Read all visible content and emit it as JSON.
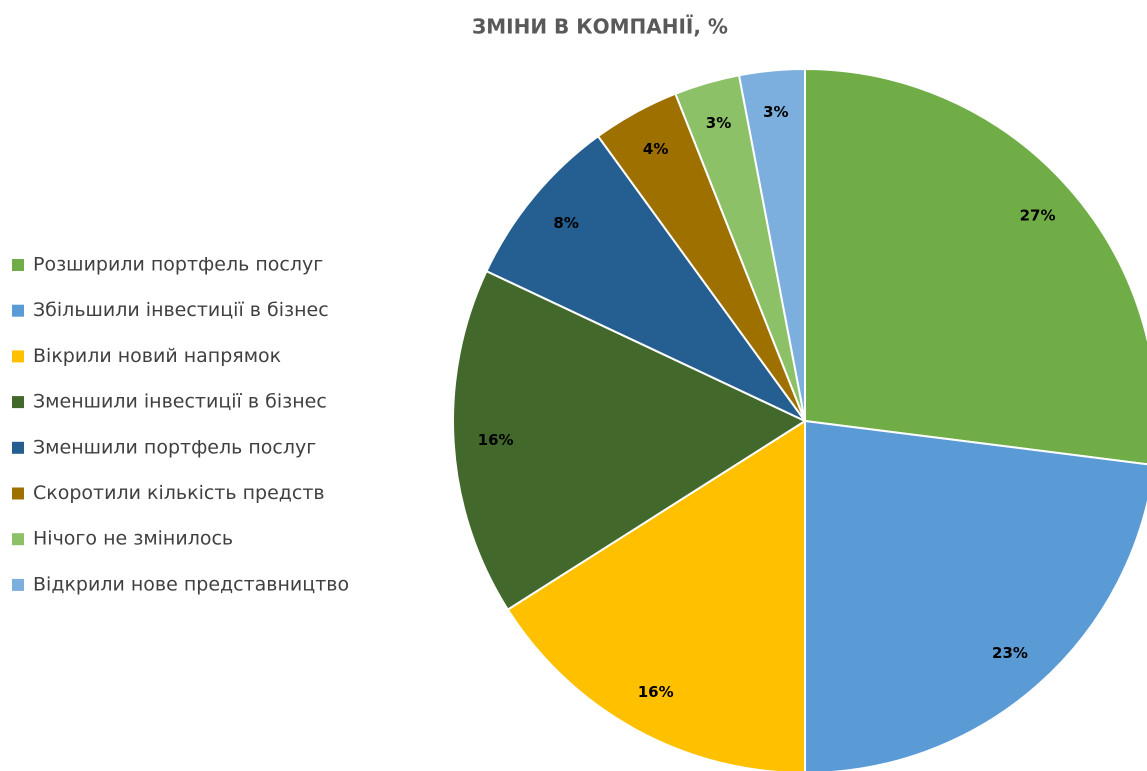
{
  "chart_data": {
    "type": "pie",
    "title": "ЗМІНИ В КОМПАНІЇ, %",
    "categories": [
      "Розширили портфель послуг",
      "Збільшили інвестиції в бізнес",
      "Вікрили новий напрямок",
      "Зменшили інвестиції в бізнес",
      "Зменшили портфель послуг",
      "Скоротили кількість предств",
      "Нічого не змінилось",
      "Відкрили нове представництво"
    ],
    "values": [
      27,
      23,
      16,
      16,
      8,
      4,
      3,
      3
    ],
    "value_labels": [
      "27%",
      "23%",
      "16%",
      "16%",
      "8%",
      "4%",
      "3%",
      "3%"
    ],
    "colors": [
      "#70ad47",
      "#5b9bd5",
      "#ffc000",
      "#43682b",
      "#255e91",
      "#9e7000",
      "#8cc168",
      "#7cafdd"
    ],
    "legend": "left"
  }
}
